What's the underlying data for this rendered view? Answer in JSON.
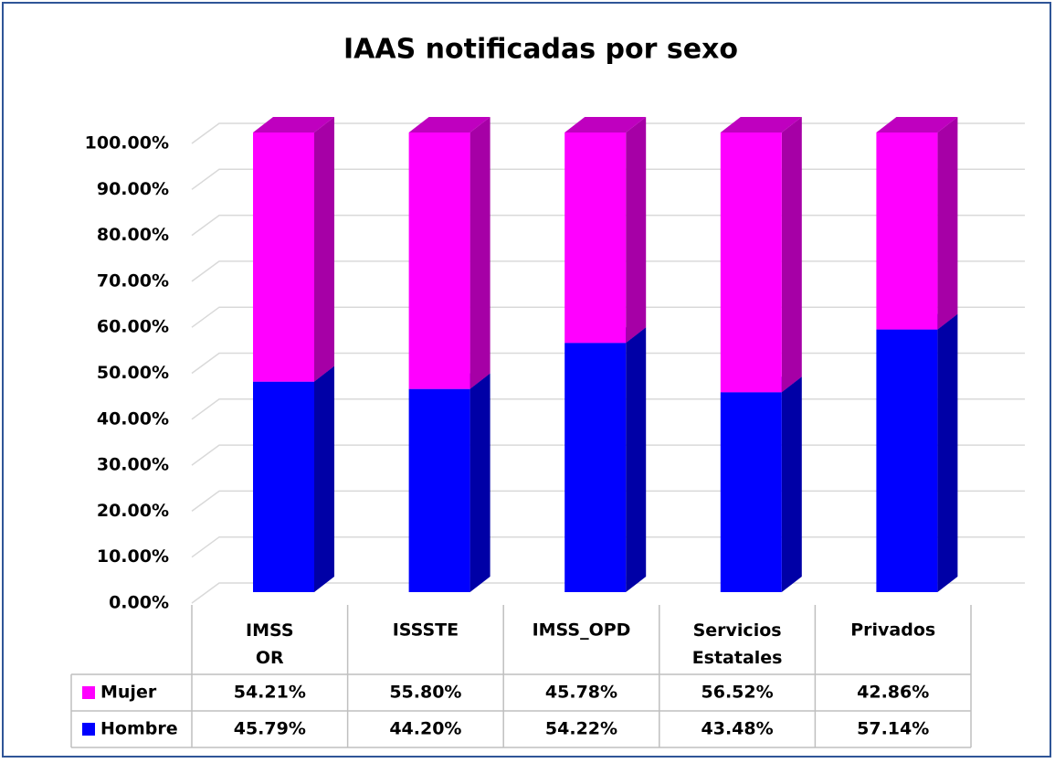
{
  "chart_data": {
    "type": "bar",
    "stacked": true,
    "title": "IAAS notificadas por sexo",
    "categories": [
      "IMSS OR",
      "ISSSTE",
      "IMSS_OPD",
      "Servicios Estatales",
      "Privados"
    ],
    "series": [
      {
        "name": "Mujer",
        "color": "#ff00ff",
        "values": [
          54.21,
          55.8,
          45.78,
          56.52,
          42.86
        ],
        "value_labels": [
          "54.21%",
          "55.80%",
          "45.78%",
          "56.52%",
          "42.86%"
        ]
      },
      {
        "name": "Hombre",
        "color": "#0000ff",
        "values": [
          45.79,
          44.2,
          54.22,
          43.48,
          57.14
        ],
        "value_labels": [
          "45.79%",
          "44.20%",
          "54.22%",
          "43.48%",
          "57.14%"
        ]
      }
    ],
    "ylim": [
      0,
      100
    ],
    "yticks": [
      {
        "value": 0,
        "label": "0.00%"
      },
      {
        "value": 10,
        "label": "10.00%"
      },
      {
        "value": 20,
        "label": "20.00%"
      },
      {
        "value": 30,
        "label": "30.00%"
      },
      {
        "value": 40,
        "label": "40.00%"
      },
      {
        "value": 50,
        "label": "50.00%"
      },
      {
        "value": 60,
        "label": "60.00%"
      },
      {
        "value": 70,
        "label": "70.00%"
      },
      {
        "value": 80,
        "label": "80.00%"
      },
      {
        "value": 90,
        "label": "90.00%"
      },
      {
        "value": 100,
        "label": "100.00%"
      }
    ],
    "grid": true,
    "legend": "table"
  }
}
